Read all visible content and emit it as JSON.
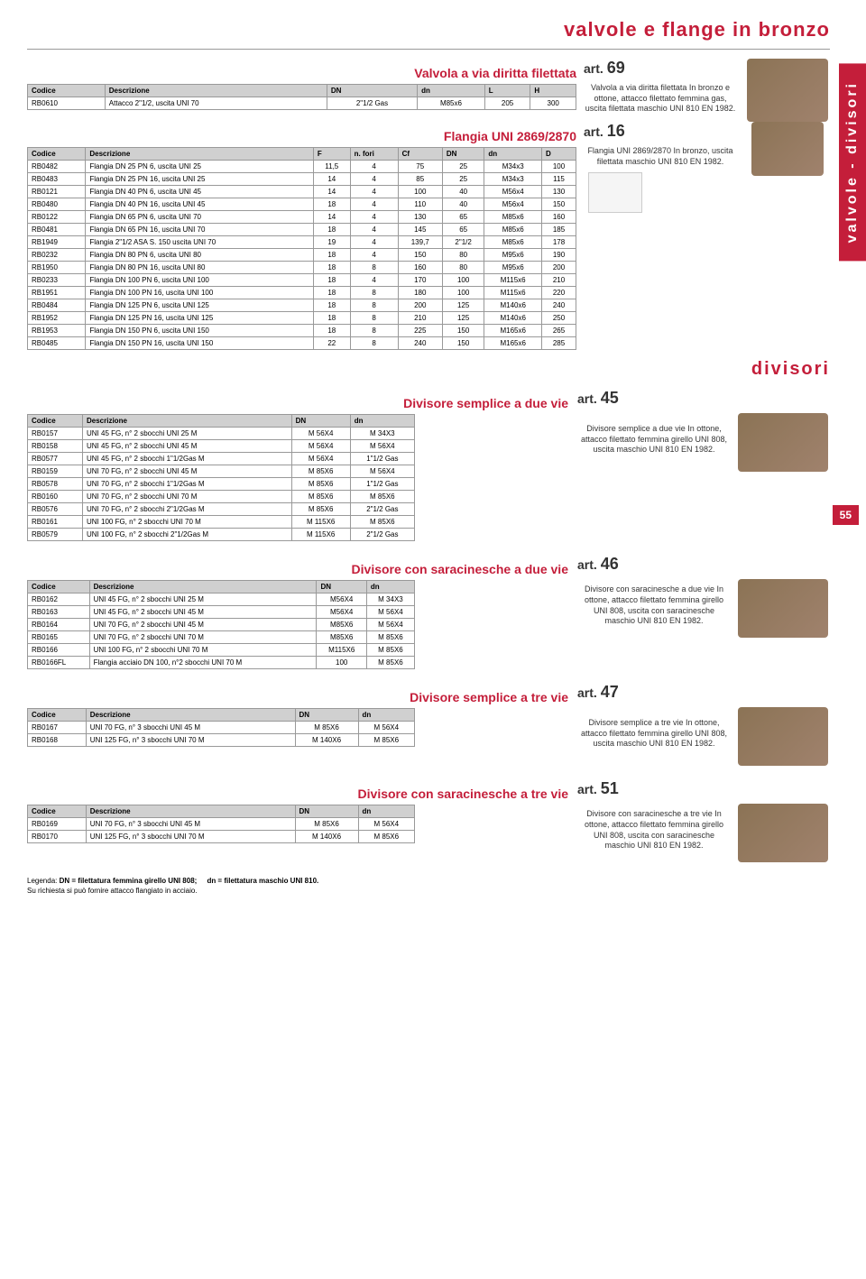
{
  "page_title": "valvole e flange in bronzo",
  "side_tab": "valvole - divisori",
  "page_number": "55",
  "divisori_label": "divisori",
  "sections": {
    "s69": {
      "title": "Valvola a via diritta filettata",
      "art": "art.",
      "artnum": "69",
      "desc": "Valvola a via diritta filettata In bronzo e ottone, attacco filettato femmina gas, uscita filettata maschio UNI 810 EN 1982.",
      "cols": [
        "Codice",
        "Descrizione",
        "DN",
        "dn",
        "L",
        "H"
      ],
      "rows": [
        [
          "RB0610",
          "Attacco 2\"1/2, uscita UNI 70",
          "2\"1/2 Gas",
          "M85x6",
          "205",
          "300"
        ]
      ]
    },
    "s16": {
      "title": "Flangia UNI 2869/2870",
      "art": "art.",
      "artnum": "16",
      "desc": "Flangia UNI 2869/2870 In bronzo, uscita filettata maschio UNI 810 EN 1982.",
      "cols": [
        "Codice",
        "Descrizione",
        "F",
        "n. fori",
        "Cf",
        "DN",
        "dn",
        "D"
      ],
      "rows": [
        [
          "RB0482",
          "Flangia DN 25 PN 6, uscita UNI 25",
          "11,5",
          "4",
          "75",
          "25",
          "M34x3",
          "100"
        ],
        [
          "RB0483",
          "Flangia DN 25 PN 16, uscita UNI 25",
          "14",
          "4",
          "85",
          "25",
          "M34x3",
          "115"
        ],
        [
          "RB0121",
          "Flangia DN 40 PN 6, uscita UNI 45",
          "14",
          "4",
          "100",
          "40",
          "M56x4",
          "130"
        ],
        [
          "RB0480",
          "Flangia DN 40 PN 16, uscita UNI 45",
          "18",
          "4",
          "110",
          "40",
          "M56x4",
          "150"
        ],
        [
          "RB0122",
          "Flangia DN 65 PN 6, uscita UNI 70",
          "14",
          "4",
          "130",
          "65",
          "M85x6",
          "160"
        ],
        [
          "RB0481",
          "Flangia DN 65 PN 16, uscita UNI 70",
          "18",
          "4",
          "145",
          "65",
          "M85x6",
          "185"
        ],
        [
          "RB1949",
          "Flangia 2\"1/2 ASA S. 150 uscita UNI 70",
          "19",
          "4",
          "139,7",
          "2\"1/2",
          "M85x6",
          "178"
        ],
        [
          "RB0232",
          "Flangia DN 80 PN 6, uscita UNI 80",
          "18",
          "4",
          "150",
          "80",
          "M95x6",
          "190"
        ],
        [
          "RB1950",
          "Flangia DN 80 PN 16, uscita UNI 80",
          "18",
          "8",
          "160",
          "80",
          "M95x6",
          "200"
        ],
        [
          "RB0233",
          "Flangia DN 100 PN 6, uscita UNI 100",
          "18",
          "4",
          "170",
          "100",
          "M115x6",
          "210"
        ],
        [
          "RB1951",
          "Flangia DN 100 PN 16, uscita UNI 100",
          "18",
          "8",
          "180",
          "100",
          "M115x6",
          "220"
        ],
        [
          "RB0484",
          "Flangia DN 125 PN 6, uscita UNI 125",
          "18",
          "8",
          "200",
          "125",
          "M140x6",
          "240"
        ],
        [
          "RB1952",
          "Flangia DN 125 PN 16, uscita UNI 125",
          "18",
          "8",
          "210",
          "125",
          "M140x6",
          "250"
        ],
        [
          "RB1953",
          "Flangia DN 150 PN 6, uscita UNI 150",
          "18",
          "8",
          "225",
          "150",
          "M165x6",
          "265"
        ],
        [
          "RB0485",
          "Flangia DN 150 PN 16, uscita UNI 150",
          "22",
          "8",
          "240",
          "150",
          "M165x6",
          "285"
        ]
      ]
    },
    "s45": {
      "title": "Divisore semplice a due vie",
      "art": "art.",
      "artnum": "45",
      "desc": "Divisore semplice a due vie In ottone, attacco filettato femmina girello UNI 808, uscita maschio UNI 810 EN 1982.",
      "cols": [
        "Codice",
        "Descrizione",
        "DN",
        "dn"
      ],
      "rows": [
        [
          "RB0157",
          "UNI 45 FG, n° 2 sbocchi UNI 25 M",
          "M 56X4",
          "M 34X3"
        ],
        [
          "RB0158",
          "UNI 45 FG, n° 2 sbocchi UNI 45 M",
          "M 56X4",
          "M 56X4"
        ],
        [
          "RB0577",
          "UNI 45 FG, n° 2 sbocchi 1\"1/2Gas M",
          "M 56X4",
          "1\"1/2 Gas"
        ],
        [
          "RB0159",
          "UNI 70 FG, n° 2 sbocchi UNI 45 M",
          "M 85X6",
          "M 56X4"
        ],
        [
          "RB0578",
          "UNI 70 FG, n° 2 sbocchi 1\"1/2Gas M",
          "M 85X6",
          "1\"1/2 Gas"
        ],
        [
          "RB0160",
          "UNI 70 FG, n° 2 sbocchi UNI 70 M",
          "M 85X6",
          "M 85X6"
        ],
        [
          "RB0576",
          "UNI 70 FG, n° 2 sbocchi 2\"1/2Gas M",
          "M 85X6",
          "2\"1/2 Gas"
        ],
        [
          "RB0161",
          "UNI 100 FG, n° 2 sbocchi UNI 70 M",
          "M 115X6",
          "M 85X6"
        ],
        [
          "RB0579",
          "UNI 100 FG, n° 2 sbocchi 2\"1/2Gas M",
          "M 115X6",
          "2\"1/2 Gas"
        ]
      ]
    },
    "s46": {
      "title": "Divisore con saracinesche a due vie",
      "art": "art.",
      "artnum": "46",
      "desc": "Divisore con saracinesche a due vie In ottone, attacco filettato femmina girello UNI 808, uscita con saracinesche maschio UNI 810 EN 1982.",
      "cols": [
        "Codice",
        "Descrizione",
        "DN",
        "dn"
      ],
      "rows": [
        [
          "RB0162",
          "UNI 45 FG, n° 2 sbocchi UNI 25 M",
          "M56X4",
          "M 34X3"
        ],
        [
          "RB0163",
          "UNI 45 FG, n° 2 sbocchi UNI 45 M",
          "M56X4",
          "M 56X4"
        ],
        [
          "RB0164",
          "UNI 70 FG, n° 2 sbocchi UNI 45 M",
          "M85X6",
          "M 56X4"
        ],
        [
          "RB0165",
          "UNI 70 FG, n° 2 sbocchi UNI 70 M",
          "M85X6",
          "M 85X6"
        ],
        [
          "RB0166",
          "UNI 100 FG, n° 2 sbocchi UNI 70 M",
          "M115X6",
          "M 85X6"
        ],
        [
          "RB0166FL",
          "Flangia acciaio DN 100, n°2 sbocchi UNI 70 M",
          "100",
          "M 85X6"
        ]
      ]
    },
    "s47": {
      "title": "Divisore semplice a tre vie",
      "art": "art.",
      "artnum": "47",
      "desc": "Divisore semplice a tre vie In ottone, attacco filettato femmina girello UNI 808, uscita maschio UNI 810 EN 1982.",
      "cols": [
        "Codice",
        "Descrizione",
        "DN",
        "dn"
      ],
      "rows": [
        [
          "RB0167",
          "UNI 70 FG, n° 3 sbocchi UNI 45 M",
          "M 85X6",
          "M 56X4"
        ],
        [
          "RB0168",
          "UNI 125 FG, n° 3 sbocchi UNI 70 M",
          "M 140X6",
          "M 85X6"
        ]
      ]
    },
    "s51": {
      "title": "Divisore con saracinesche a tre vie",
      "art": "art.",
      "artnum": "51",
      "desc": "Divisore con saracinesche a tre vie In ottone, attacco filettato femmina girello UNI 808, uscita con saracinesche maschio UNI 810 EN 1982.",
      "cols": [
        "Codice",
        "Descrizione",
        "DN",
        "dn"
      ],
      "rows": [
        [
          "RB0169",
          "UNI 70 FG, n° 3 sbocchi UNI 45 M",
          "M 85X6",
          "M 56X4"
        ],
        [
          "RB0170",
          "UNI 125 FG, n° 3 sbocchi UNI 70 M",
          "M 140X6",
          "M 85X6"
        ]
      ]
    }
  },
  "legend": {
    "l1": "Legenda:",
    "l2": "DN = filettatura femmina girello UNI 808;",
    "l3": "dn = filettatura maschio UNI 810.",
    "l4": "Su richiesta si può fornire attacco flangiato in acciaio."
  },
  "colors": {
    "accent": "#c41e3a",
    "header_bg": "#d0d0d0",
    "border": "#999"
  }
}
